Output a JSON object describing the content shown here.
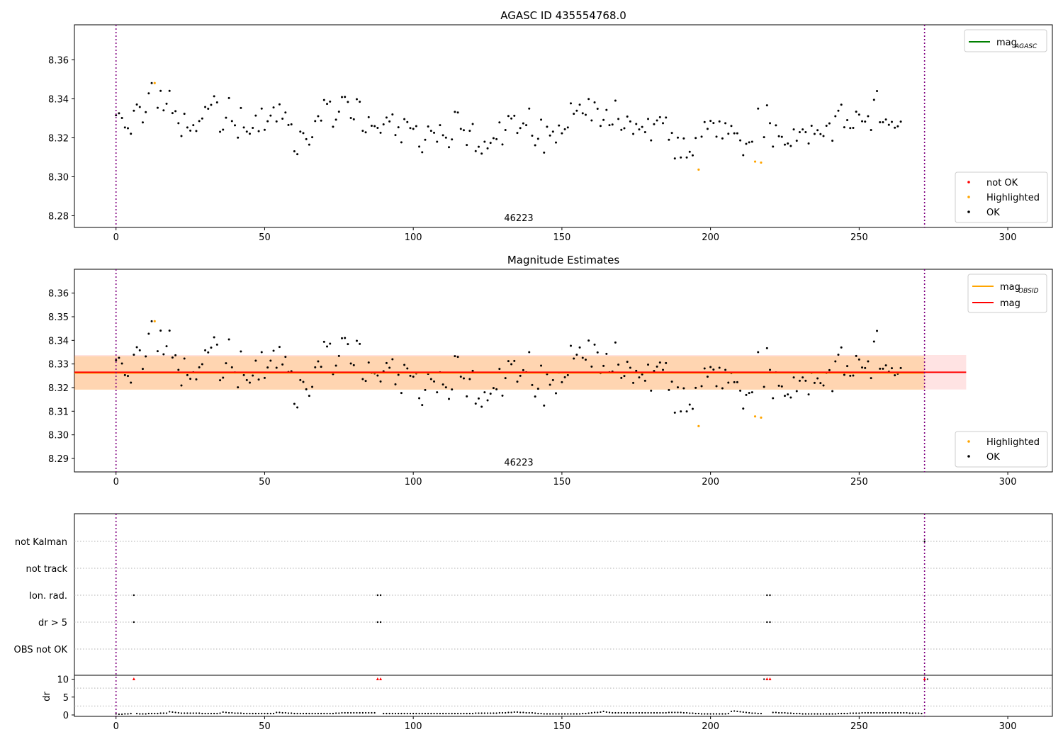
{
  "chart_data": [
    {
      "type": "scatter",
      "title": "AGASC ID 435554768.0",
      "annotation": "46223",
      "xlim": [
        -14,
        315
      ],
      "ylim": [
        8.274,
        8.378
      ],
      "xticks": [
        0,
        50,
        100,
        150,
        200,
        250,
        300
      ],
      "yticks": [
        8.28,
        8.3,
        8.32,
        8.34,
        8.36
      ],
      "yticks_label": [
        "8.28",
        "8.30",
        "8.32",
        "8.34",
        "8.36"
      ],
      "vlines": [
        0,
        272
      ],
      "vline_color": "#800080",
      "legend_upper": [
        {
          "label": "mag",
          "sub": "AGASC",
          "color": "#008000",
          "kind": "line"
        }
      ],
      "legend_lower": [
        {
          "label": "not OK",
          "color": "#ff0000",
          "kind": "dot"
        },
        {
          "label": "Highlighted",
          "color": "#ffa500",
          "kind": "dot"
        },
        {
          "label": "OK",
          "color": "#000000",
          "kind": "dot"
        }
      ],
      "legend_upper_position": "top-right",
      "legend_lower_position": "bottom-right",
      "series": [
        {
          "name": "OK",
          "color": "#000000",
          "y": [
            8.3316,
            8.3326,
            8.3302,
            8.3253,
            8.3249,
            8.3221,
            8.3339,
            8.3371,
            8.3358,
            8.3279,
            8.3332,
            8.3428,
            8.3481,
            8.3281,
            8.3354,
            8.3441,
            8.3341,
            8.3375,
            8.3441,
            8.3327,
            8.3337,
            8.3275,
            8.3209,
            8.3323,
            8.3253,
            8.3237,
            8.3265,
            8.3235,
            8.3286,
            8.3299,
            8.3358,
            8.3349,
            8.3369,
            8.3413,
            8.3382,
            8.3231,
            8.3242,
            8.3303,
            8.3404,
            8.3286,
            8.3264,
            8.3201,
            8.3353,
            8.3253,
            8.3232,
            8.3221,
            8.3251,
            8.3314,
            8.3234,
            8.335,
            8.3241,
            8.3285,
            8.3314,
            8.3356,
            8.3284,
            8.3372,
            8.3298,
            8.333,
            8.3266,
            8.3269,
            8.3131,
            8.3116,
            8.3232,
            8.3224,
            8.3193,
            8.3165,
            8.3203,
            8.3286,
            8.3311,
            8.3288,
            8.3394,
            8.3374,
            8.3386,
            8.3257,
            8.3293,
            8.3334,
            8.3409,
            8.341,
            8.3384,
            8.3302,
            8.3295,
            8.3398,
            8.3385,
            8.3236,
            8.3228,
            8.3306,
            8.3262,
            8.326,
            8.3251,
            8.3226,
            8.3269,
            8.3304,
            8.3284,
            8.332,
            8.3214,
            8.3254,
            8.3177,
            8.3296,
            8.3281,
            8.325,
            8.3246,
            8.326,
            8.3155,
            8.3126,
            8.319,
            8.3258,
            8.3236,
            8.3226,
            8.318,
            8.3265,
            8.3213,
            8.3201,
            8.3152,
            8.3192,
            8.3333,
            8.333,
            8.3246,
            8.3239,
            8.3163,
            8.3236,
            8.3271,
            8.3132,
            8.3154,
            8.3119,
            8.318,
            8.3146,
            8.3174,
            8.3198,
            8.3193,
            8.3279,
            8.3166,
            8.324,
            8.3312,
            8.3299,
            8.3313,
            8.3225,
            8.325,
            8.3274,
            8.3265,
            8.335,
            8.3211,
            8.3162,
            8.3195,
            8.3293,
            8.3124,
            8.3257,
            8.3212,
            8.3232,
            8.3176,
            8.3263,
            8.3223,
            8.3244,
            8.3253,
            8.3377,
            8.3323,
            8.3339,
            8.337,
            8.3326,
            8.3318,
            8.3399,
            8.3289,
            8.3382,
            8.3349,
            8.3261,
            8.3292,
            8.3343,
            8.3265,
            8.3268,
            8.3391,
            8.3297,
            8.3241,
            8.3249,
            8.3309,
            8.3284,
            8.322,
            8.3271,
            8.3243,
            8.3256,
            8.3229,
            8.3297,
            8.3187,
            8.327,
            8.3289,
            8.3306,
            8.3275,
            8.3304,
            8.319,
            8.3225,
            8.3094,
            8.3201,
            8.3099,
            8.3197,
            8.3099,
            8.3128,
            8.311,
            8.3199,
            8.3206,
            8.3206,
            8.3281,
            8.3246,
            8.3287,
            8.3276,
            8.3206,
            8.3284,
            8.3197,
            8.3275,
            8.3221,
            8.3261,
            8.3223,
            8.3223,
            8.3187,
            8.3111,
            8.3169,
            8.3177,
            8.318,
            8.3236,
            8.335,
            8.3365,
            8.3203,
            8.3367,
            8.3275,
            8.3155,
            8.3264,
            8.3208,
            8.3205,
            8.3165,
            8.3171,
            8.3158,
            8.3243,
            8.3185,
            8.3229,
            8.3243,
            8.3229,
            8.3171,
            8.3262,
            8.322,
            8.3239,
            8.3219,
            8.3209,
            8.3262,
            8.3274,
            8.3185,
            8.3311,
            8.3339,
            8.337,
            8.3254,
            8.3291,
            8.325,
            8.3251,
            8.3334,
            8.3319,
            8.3285,
            8.3283,
            8.3311,
            8.324,
            8.3395,
            8.344,
            8.328,
            8.328,
            8.3294,
            8.3267,
            8.3282,
            8.3252,
            8.3259,
            8.3283
          ]
        },
        {
          "name": "Highlighted",
          "color": "#ffa500",
          "points": [
            [
              13,
              8.3481
            ],
            [
              196,
              8.3037
            ],
            [
              215,
              8.3078
            ],
            [
              217,
              8.3073
            ]
          ]
        }
      ]
    },
    {
      "type": "scatter",
      "title": "Magnitude Estimates",
      "annotation": "46223",
      "xlim": [
        -14,
        315
      ],
      "ylim": [
        8.2843,
        8.3701
      ],
      "xticks": [
        0,
        50,
        100,
        150,
        200,
        250,
        300
      ],
      "yticks": [
        8.29,
        8.3,
        8.31,
        8.32,
        8.33,
        8.34,
        8.35,
        8.36
      ],
      "yticks_label": [
        "8.29",
        "8.30",
        "8.31",
        "8.32",
        "8.33",
        "8.34",
        "8.35",
        "8.36"
      ],
      "vlines": [
        0,
        272
      ],
      "vline_color": "#800080",
      "mag": 8.3265,
      "mag_obsid": 8.3262,
      "band_mag": [
        8.3192,
        8.3338
      ],
      "band_obsid": [
        8.3191,
        8.3333
      ],
      "band_x": [
        -14,
        286
      ],
      "legend_upper": [
        {
          "label": "mag",
          "sub": "OBSID",
          "color": "#ffa500",
          "kind": "line"
        },
        {
          "label": "mag",
          "sub": "",
          "color": "#ff0000",
          "kind": "line"
        }
      ],
      "legend_lower": [
        {
          "label": "Highlighted",
          "color": "#ffa500",
          "kind": "dot"
        },
        {
          "label": "OK",
          "color": "#000000",
          "kind": "dot"
        }
      ],
      "legend_upper_position": "top-right",
      "legend_lower_position": "bottom-right",
      "series_ref": "same magnitude series as panel 1"
    },
    {
      "type": "scatter",
      "xlim": [
        -14,
        315
      ],
      "xticks": [
        0,
        50,
        100,
        150,
        200,
        250,
        300
      ],
      "flag_labels": [
        "not Kalman",
        "not track",
        "Ion. rad.",
        "dr > 5",
        "OBS not OK"
      ],
      "flags": {
        "not Kalman": [
          272
        ],
        "not track": [],
        "Ion. rad.": [
          6,
          88,
          89,
          219,
          220
        ],
        "dr > 5": [
          6,
          88,
          89,
          219,
          220
        ],
        "OBS not OK": []
      },
      "vlines": [
        0,
        272
      ],
      "vline_color": "#800080",
      "ylabel": "dr",
      "dr_yticks": [
        0,
        5,
        10
      ],
      "dr_ylim": [
        0,
        10.3
      ],
      "dr_clip_points": [
        6,
        88,
        89,
        219,
        220,
        272
      ],
      "dr_clip_color": "#ff0000",
      "dr_values": [
        0.3,
        0.2,
        0.2,
        0.3,
        0.3,
        0.4,
        10,
        0.4,
        0.3,
        0.3,
        0.3,
        0.4,
        0.4,
        0.4,
        0.4,
        0.5,
        0.5,
        0.5,
        0.9,
        0.8,
        0.7,
        0.6,
        0.5,
        0.5,
        0.5,
        0.5,
        0.5,
        0.5,
        0.5,
        0.4,
        0.4,
        0.4,
        0.4,
        0.4,
        0.4,
        0.5,
        0.8,
        0.7,
        0.6,
        0.6,
        0.5,
        0.5,
        0.5,
        0.4,
        0.4,
        0.4,
        0.4,
        0.4,
        0.4,
        0.4,
        0.4,
        0.4,
        0.4,
        0.4,
        0.7,
        0.7,
        0.6,
        0.6,
        0.5,
        0.5,
        0.4,
        0.4,
        0.4,
        0.4,
        0.4,
        0.4,
        0.4,
        0.4,
        0.4,
        0.4,
        0.4,
        0.4,
        0.4,
        0.4,
        0.5,
        0.5,
        0.6,
        0.6,
        0.6,
        0.6,
        0.6,
        0.6,
        0.6,
        0.6,
        0.6,
        0.6,
        0.6,
        0.6,
        10,
        10,
        0.4,
        0.4,
        0.4,
        0.4,
        0.4,
        0.4,
        0.4,
        0.4,
        0.4,
        0.4,
        0.4,
        0.4,
        0.4,
        0.4,
        0.4,
        0.4,
        0.4,
        0.4,
        0.4,
        0.4,
        0.4,
        0.4,
        0.4,
        0.4,
        0.4,
        0.4,
        0.4,
        0.4,
        0.4,
        0.4,
        0.4,
        0.5,
        0.5,
        0.5,
        0.5,
        0.5,
        0.5,
        0.5,
        0.5,
        0.6,
        0.6,
        0.6,
        0.7,
        0.7,
        0.8,
        0.8,
        0.7,
        0.7,
        0.6,
        0.6,
        0.6,
        0.5,
        0.4,
        0.4,
        0.3,
        0.3,
        0.3,
        0.3,
        0.3,
        0.3,
        0.3,
        0.3,
        0.3,
        0.3,
        0.3,
        0.3,
        0.3,
        0.4,
        0.4,
        0.5,
        0.6,
        0.7,
        0.7,
        0.8,
        1.0,
        0.8,
        0.7,
        0.6,
        0.6,
        0.6,
        0.6,
        0.6,
        0.6,
        0.6,
        0.6,
        0.6,
        0.6,
        0.6,
        0.6,
        0.6,
        0.6,
        0.6,
        0.6,
        0.6,
        0.6,
        0.6,
        0.7,
        0.7,
        0.7,
        0.7,
        0.7,
        0.6,
        0.6,
        0.5,
        0.5,
        0.4,
        0.4,
        0.3,
        0.3,
        0.3,
        0.3,
        0.3,
        0.3,
        0.3,
        0.3,
        0.3,
        0.4,
        1.0,
        1.1,
        1.0,
        0.9,
        0.8,
        0.7,
        0.6,
        0.5,
        0.5,
        0.4,
        0.4,
        10,
        10,
        0.8,
        0.7,
        0.7,
        0.6,
        0.6,
        0.6,
        0.5,
        0.5,
        0.4,
        0.4,
        0.4,
        0.3,
        0.3,
        0.3,
        0.3,
        0.3,
        0.3,
        0.3,
        0.3,
        0.3,
        0.3,
        0.3,
        0.3,
        0.4,
        0.4,
        0.4,
        0.4,
        0.5,
        0.5,
        0.5,
        0.5,
        0.6,
        0.6,
        0.6,
        0.6,
        0.6,
        0.6,
        0.6,
        0.6,
        0.6,
        0.6,
        0.6,
        0.6,
        0.6,
        0.6,
        0.6,
        0.6,
        0.5,
        0.5,
        0.5,
        0.5,
        0.4,
        0.3,
        10
      ]
    }
  ]
}
